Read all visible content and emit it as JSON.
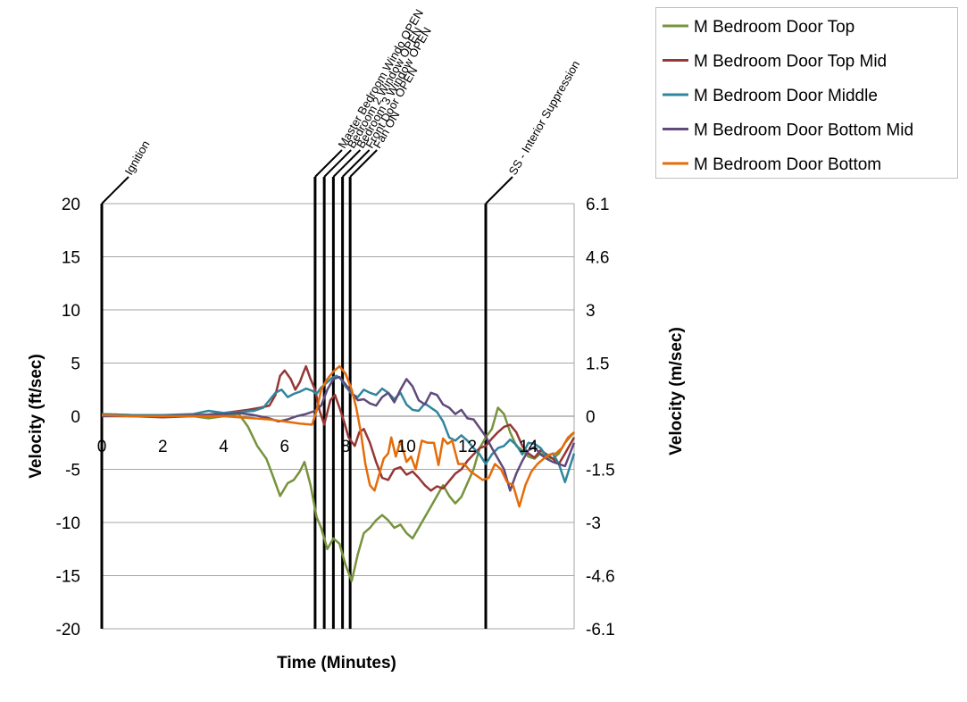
{
  "chart_data": {
    "type": "line",
    "xlabel": "Time (Minutes)",
    "ylabel": "Velocity (ft/sec)",
    "y2label": "Velocity (m/sec)",
    "xlim": [
      0,
      15.5
    ],
    "ylim": [
      -20,
      20
    ],
    "x_ticks": [
      0,
      2,
      4,
      6,
      8,
      10,
      12,
      14
    ],
    "y_ticks": [
      20,
      15,
      10,
      5,
      0,
      -5,
      -10,
      -15,
      -20
    ],
    "y2_ticks": [
      "6.1",
      "4.6",
      "3",
      "1.5",
      "0",
      "-1.5",
      "-3",
      "-4.6",
      "-6.1"
    ],
    "grid": "horizontal",
    "legend_position": "top-right",
    "events": [
      {
        "label": "Ignition",
        "x": 0.0
      },
      {
        "label": "Master Bedroom Windo OPEN",
        "x": 7.0
      },
      {
        "label": "Bedroom 2 Window OPEN",
        "x": 7.3
      },
      {
        "label": "Bedroom 3 Window OPEN",
        "x": 7.6
      },
      {
        "label": "Front Door OPEN",
        "x": 7.9
      },
      {
        "label": "Fan ON",
        "x": 8.15
      },
      {
        "label": "SS - Interior Suppression",
        "x": 12.6
      }
    ],
    "series": [
      {
        "name": "M Bedroom Door Top",
        "color": "#77933c",
        "points": [
          [
            0,
            0.2
          ],
          [
            1,
            0.1
          ],
          [
            2,
            0
          ],
          [
            3,
            0
          ],
          [
            3.5,
            -0.2
          ],
          [
            4,
            0
          ],
          [
            4.5,
            0.2
          ],
          [
            4.8,
            -1
          ],
          [
            5.1,
            -2.8
          ],
          [
            5.4,
            -4
          ],
          [
            5.6,
            -5.5
          ],
          [
            5.85,
            -7.5
          ],
          [
            6.1,
            -6.3
          ],
          [
            6.3,
            -6
          ],
          [
            6.5,
            -5.2
          ],
          [
            6.65,
            -4.3
          ],
          [
            6.85,
            -6.5
          ],
          [
            7.05,
            -9.5
          ],
          [
            7.2,
            -10.5
          ],
          [
            7.4,
            -12.5
          ],
          [
            7.6,
            -11.5
          ],
          [
            7.8,
            -12
          ],
          [
            8.0,
            -14
          ],
          [
            8.2,
            -15.5
          ],
          [
            8.4,
            -13
          ],
          [
            8.6,
            -11
          ],
          [
            8.8,
            -10.5
          ],
          [
            9.0,
            -9.8
          ],
          [
            9.2,
            -9.3
          ],
          [
            9.4,
            -9.8
          ],
          [
            9.6,
            -10.5
          ],
          [
            9.8,
            -10.2
          ],
          [
            10.0,
            -11
          ],
          [
            10.2,
            -11.5
          ],
          [
            10.4,
            -10.5
          ],
          [
            10.6,
            -9.5
          ],
          [
            10.8,
            -8.5
          ],
          [
            11.0,
            -7.5
          ],
          [
            11.2,
            -6.5
          ],
          [
            11.4,
            -7.5
          ],
          [
            11.6,
            -8.2
          ],
          [
            11.8,
            -7.6
          ],
          [
            12.0,
            -6.3
          ],
          [
            12.2,
            -5
          ],
          [
            12.4,
            -3
          ],
          [
            12.6,
            -2
          ],
          [
            12.8,
            -1.2
          ],
          [
            13.0,
            0.8
          ],
          [
            13.2,
            0.2
          ],
          [
            13.4,
            -1.5
          ],
          [
            13.6,
            -2.8
          ],
          [
            13.8,
            -3.2
          ],
          [
            14.0,
            -3.8
          ],
          [
            14.2,
            -4
          ],
          [
            14.4,
            -3.5
          ],
          [
            14.6,
            -3.8
          ],
          [
            14.8,
            -4
          ],
          [
            15.0,
            -3.5
          ],
          [
            15.2,
            -2.5
          ],
          [
            15.5,
            -1.5
          ]
        ]
      },
      {
        "name": "M Bedroom Door Top Mid",
        "color": "#953735",
        "points": [
          [
            0,
            0.1
          ],
          [
            1,
            0
          ],
          [
            2,
            -0.1
          ],
          [
            3,
            0
          ],
          [
            4,
            0.3
          ],
          [
            4.8,
            0.6
          ],
          [
            5.2,
            0.8
          ],
          [
            5.5,
            1
          ],
          [
            5.7,
            2
          ],
          [
            5.85,
            3.8
          ],
          [
            6.0,
            4.3
          ],
          [
            6.2,
            3.5
          ],
          [
            6.35,
            2.5
          ],
          [
            6.5,
            3.2
          ],
          [
            6.6,
            4
          ],
          [
            6.7,
            4.7
          ],
          [
            6.85,
            3.5
          ],
          [
            7.0,
            2.5
          ],
          [
            7.15,
            0.5
          ],
          [
            7.3,
            -0.8
          ],
          [
            7.5,
            1.5
          ],
          [
            7.65,
            2
          ],
          [
            7.8,
            0.8
          ],
          [
            7.95,
            -0.5
          ],
          [
            8.1,
            -2
          ],
          [
            8.3,
            -2.8
          ],
          [
            8.45,
            -1.5
          ],
          [
            8.6,
            -1.2
          ],
          [
            8.8,
            -2.5
          ],
          [
            9.0,
            -4.3
          ],
          [
            9.2,
            -5.8
          ],
          [
            9.4,
            -6
          ],
          [
            9.6,
            -5
          ],
          [
            9.8,
            -4.8
          ],
          [
            10.0,
            -5.5
          ],
          [
            10.2,
            -5.2
          ],
          [
            10.4,
            -5.8
          ],
          [
            10.6,
            -6.5
          ],
          [
            10.8,
            -7
          ],
          [
            11.0,
            -6.6
          ],
          [
            11.2,
            -6.8
          ],
          [
            11.4,
            -6.1
          ],
          [
            11.6,
            -5.4
          ],
          [
            11.8,
            -5
          ],
          [
            12.0,
            -4.2
          ],
          [
            12.2,
            -3.6
          ],
          [
            12.4,
            -3
          ],
          [
            12.6,
            -2.8
          ],
          [
            12.8,
            -2.1
          ],
          [
            13.0,
            -1.5
          ],
          [
            13.2,
            -1
          ],
          [
            13.4,
            -0.8
          ],
          [
            13.6,
            -1.5
          ],
          [
            13.8,
            -2.8
          ],
          [
            14.0,
            -3.5
          ],
          [
            14.2,
            -3.9
          ],
          [
            14.4,
            -3.2
          ],
          [
            14.6,
            -3.6
          ],
          [
            14.8,
            -4
          ],
          [
            15.0,
            -4.5
          ],
          [
            15.2,
            -3.5
          ],
          [
            15.5,
            -2
          ]
        ]
      },
      {
        "name": "M Bedroom Door Middle",
        "color": "#31859c",
        "points": [
          [
            0,
            0.2
          ],
          [
            1,
            0.1
          ],
          [
            2,
            0.1
          ],
          [
            3,
            0.2
          ],
          [
            3.5,
            0.5
          ],
          [
            4,
            0.3
          ],
          [
            4.5,
            0.4
          ],
          [
            5,
            0.5
          ],
          [
            5.3,
            0.8
          ],
          [
            5.5,
            1.5
          ],
          [
            5.7,
            2.2
          ],
          [
            5.9,
            2.5
          ],
          [
            6.1,
            1.8
          ],
          [
            6.3,
            2.1
          ],
          [
            6.5,
            2.3
          ],
          [
            6.7,
            2.6
          ],
          [
            6.9,
            2.4
          ],
          [
            7.05,
            2.1
          ],
          [
            7.2,
            2.7
          ],
          [
            7.4,
            3.2
          ],
          [
            7.55,
            3.6
          ],
          [
            7.7,
            3.8
          ],
          [
            7.85,
            3.5
          ],
          [
            8.0,
            2.8
          ],
          [
            8.2,
            2.1
          ],
          [
            8.4,
            1.8
          ],
          [
            8.6,
            2.5
          ],
          [
            8.8,
            2.2
          ],
          [
            9.0,
            2
          ],
          [
            9.2,
            2.6
          ],
          [
            9.4,
            2.2
          ],
          [
            9.6,
            1.6
          ],
          [
            9.8,
            2.2
          ],
          [
            10.0,
            1.1
          ],
          [
            10.2,
            0.6
          ],
          [
            10.4,
            0.5
          ],
          [
            10.6,
            1.2
          ],
          [
            10.8,
            0.8
          ],
          [
            11.0,
            0.4
          ],
          [
            11.2,
            -0.5
          ],
          [
            11.4,
            -2
          ],
          [
            11.6,
            -2.3
          ],
          [
            11.8,
            -1.8
          ],
          [
            12.0,
            -2.3
          ],
          [
            12.2,
            -3
          ],
          [
            12.4,
            -3.6
          ],
          [
            12.6,
            -4.5
          ],
          [
            12.8,
            -3.6
          ],
          [
            13.0,
            -3
          ],
          [
            13.2,
            -2.8
          ],
          [
            13.4,
            -2.2
          ],
          [
            13.6,
            -2.7
          ],
          [
            13.8,
            -3.6
          ],
          [
            14.0,
            -2.5
          ],
          [
            14.2,
            -2.6
          ],
          [
            14.4,
            -3
          ],
          [
            14.6,
            -3.8
          ],
          [
            14.8,
            -3.5
          ],
          [
            15.0,
            -4.5
          ],
          [
            15.2,
            -6.2
          ],
          [
            15.5,
            -3.5
          ]
        ]
      },
      {
        "name": "M Bedroom Door Bottom Mid",
        "color": "#604a7b",
        "points": [
          [
            0,
            0
          ],
          [
            1,
            0
          ],
          [
            2,
            0
          ],
          [
            3,
            0.1
          ],
          [
            4,
            0.2
          ],
          [
            4.5,
            0.3
          ],
          [
            5,
            0.1
          ],
          [
            5.5,
            -0.2
          ],
          [
            5.8,
            -0.5
          ],
          [
            6.1,
            -0.3
          ],
          [
            6.4,
            0
          ],
          [
            6.7,
            0.2
          ],
          [
            7.0,
            0.5
          ],
          [
            7.2,
            1
          ],
          [
            7.4,
            2.5
          ],
          [
            7.6,
            3.5
          ],
          [
            7.8,
            3.7
          ],
          [
            8.0,
            3
          ],
          [
            8.2,
            2.2
          ],
          [
            8.4,
            1.5
          ],
          [
            8.6,
            1.6
          ],
          [
            8.8,
            1.2
          ],
          [
            9.0,
            1
          ],
          [
            9.2,
            1.8
          ],
          [
            9.4,
            2.2
          ],
          [
            9.6,
            1.3
          ],
          [
            9.8,
            2.5
          ],
          [
            10.0,
            3.5
          ],
          [
            10.2,
            2.8
          ],
          [
            10.4,
            1.5
          ],
          [
            10.6,
            1.1
          ],
          [
            10.8,
            2.2
          ],
          [
            11.0,
            2
          ],
          [
            11.2,
            1.1
          ],
          [
            11.4,
            0.8
          ],
          [
            11.6,
            0.2
          ],
          [
            11.8,
            0.6
          ],
          [
            12.0,
            -0.2
          ],
          [
            12.2,
            -0.3
          ],
          [
            12.4,
            -1.1
          ],
          [
            12.6,
            -1.9
          ],
          [
            12.8,
            -3
          ],
          [
            13.0,
            -4
          ],
          [
            13.2,
            -5
          ],
          [
            13.4,
            -7
          ],
          [
            13.6,
            -5.4
          ],
          [
            13.8,
            -4.2
          ],
          [
            14.0,
            -3.2
          ],
          [
            14.2,
            -2.9
          ],
          [
            14.4,
            -3.6
          ],
          [
            14.6,
            -4
          ],
          [
            14.8,
            -4.3
          ],
          [
            15.0,
            -4.5
          ],
          [
            15.2,
            -4.7
          ],
          [
            15.5,
            -2.5
          ]
        ]
      },
      {
        "name": "M Bedroom Door Bottom",
        "color": "#e46c0a",
        "points": [
          [
            0,
            0.1
          ],
          [
            1,
            0
          ],
          [
            2,
            0
          ],
          [
            3,
            0
          ],
          [
            4,
            0
          ],
          [
            4.5,
            -0.1
          ],
          [
            5,
            -0.2
          ],
          [
            5.5,
            -0.3
          ],
          [
            6,
            -0.5
          ],
          [
            6.5,
            -0.7
          ],
          [
            6.9,
            -0.8
          ],
          [
            7.05,
            0.5
          ],
          [
            7.2,
            2.5
          ],
          [
            7.4,
            3.5
          ],
          [
            7.6,
            4.2
          ],
          [
            7.8,
            4.7
          ],
          [
            8.0,
            4
          ],
          [
            8.2,
            2.5
          ],
          [
            8.35,
            0.8
          ],
          [
            8.5,
            -1.5
          ],
          [
            8.65,
            -4.5
          ],
          [
            8.8,
            -6.5
          ],
          [
            8.95,
            -7
          ],
          [
            9.1,
            -5.5
          ],
          [
            9.25,
            -4
          ],
          [
            9.4,
            -3.5
          ],
          [
            9.5,
            -2
          ],
          [
            9.65,
            -3.8
          ],
          [
            9.8,
            -2.3
          ],
          [
            10.0,
            -4.3
          ],
          [
            10.15,
            -3.8
          ],
          [
            10.3,
            -5
          ],
          [
            10.5,
            -2.3
          ],
          [
            10.7,
            -2.5
          ],
          [
            10.9,
            -2.5
          ],
          [
            11.05,
            -4.6
          ],
          [
            11.2,
            -2.1
          ],
          [
            11.35,
            -2.6
          ],
          [
            11.5,
            -2.3
          ],
          [
            11.7,
            -4.5
          ],
          [
            11.9,
            -4.5
          ],
          [
            12.1,
            -5.2
          ],
          [
            12.3,
            -5.6
          ],
          [
            12.5,
            -6
          ],
          [
            12.7,
            -5.8
          ],
          [
            12.9,
            -4.5
          ],
          [
            13.1,
            -5
          ],
          [
            13.3,
            -6.2
          ],
          [
            13.5,
            -6.5
          ],
          [
            13.7,
            -8.5
          ],
          [
            13.9,
            -6.5
          ],
          [
            14.1,
            -5.2
          ],
          [
            14.3,
            -4.5
          ],
          [
            14.5,
            -4
          ],
          [
            14.7,
            -3.6
          ],
          [
            14.9,
            -3.5
          ],
          [
            15.1,
            -3
          ],
          [
            15.3,
            -2
          ],
          [
            15.5,
            -1.5
          ]
        ]
      }
    ]
  }
}
